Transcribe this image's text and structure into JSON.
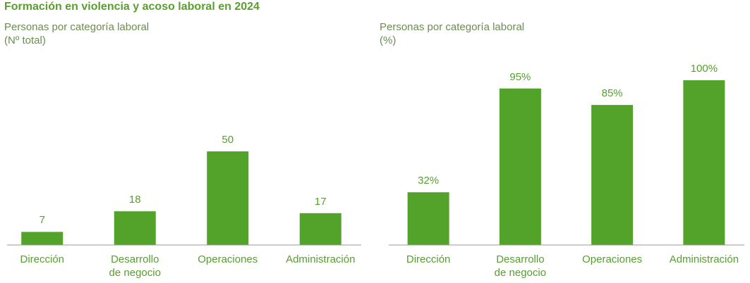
{
  "title": "Formación en violencia y acoso laboral en 2024",
  "chart_data": [
    {
      "type": "bar",
      "subtitle": "Personas por categoría laboral\n(Nº total)",
      "categories": [
        "Dirección",
        "Desarrollo\nde negocio",
        "Operaciones",
        "Administración"
      ],
      "values": [
        7,
        18,
        50,
        17
      ],
      "color": "#53a22a",
      "ylim": [
        0,
        88
      ]
    },
    {
      "type": "bar",
      "subtitle": "Personas por categoría laboral\n(%)",
      "categories": [
        "Dirección",
        "Desarrollo\nde negocio",
        "Operaciones",
        "Administración"
      ],
      "values": [
        32,
        95,
        85,
        100
      ],
      "value_labels": [
        "32%",
        "95%",
        "85%",
        "100%"
      ],
      "color": "#53a22a",
      "ylim": [
        0,
        100
      ]
    }
  ]
}
